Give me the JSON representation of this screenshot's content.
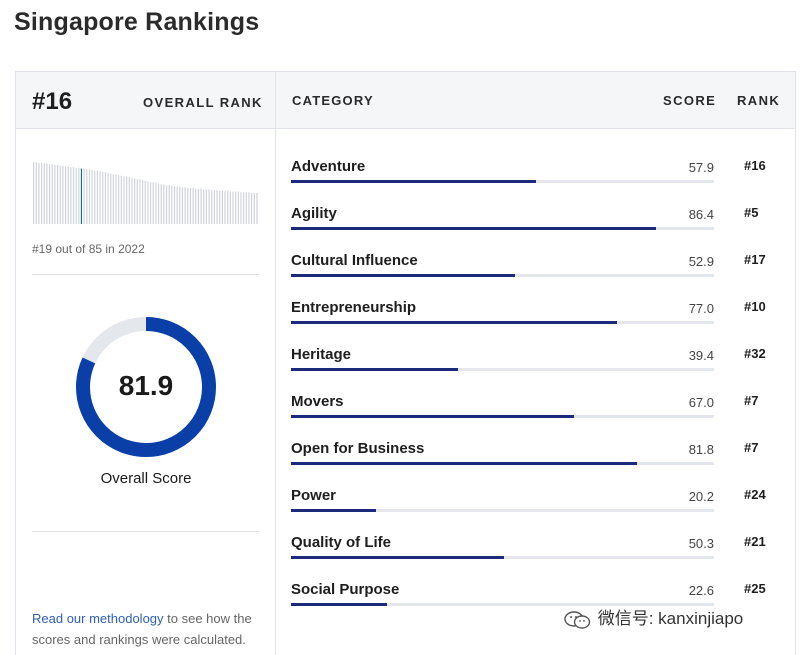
{
  "page": {
    "title": "Singapore Rankings"
  },
  "header": {
    "rank": "#16",
    "overall_rank_label": "OVERALL RANK",
    "category_label": "CATEGORY",
    "score_label": "SCORE",
    "rank_label": "RANK"
  },
  "history": {
    "caption": "#19 out of 85 in 2022",
    "bars": [
      0.86,
      0.86,
      0.85,
      0.85,
      0.84,
      0.84,
      0.83,
      0.83,
      0.82,
      0.82,
      0.81,
      0.81,
      0.8,
      0.8,
      0.79,
      0.79,
      0.78,
      0.78,
      0.77,
      0.77,
      0.76,
      0.76,
      0.75,
      0.74,
      0.74,
      0.73,
      0.72,
      0.72,
      0.71,
      0.7,
      0.69,
      0.69,
      0.68,
      0.67,
      0.66,
      0.66,
      0.65,
      0.64,
      0.63,
      0.62,
      0.62,
      0.61,
      0.6,
      0.59,
      0.58,
      0.58,
      0.57,
      0.56,
      0.55,
      0.55,
      0.54,
      0.54,
      0.53,
      0.53,
      0.52,
      0.52,
      0.51,
      0.51,
      0.5,
      0.5,
      0.5,
      0.49,
      0.49,
      0.49,
      0.48,
      0.48,
      0.48,
      0.47,
      0.47,
      0.47,
      0.46,
      0.46,
      0.46,
      0.46,
      0.45,
      0.45,
      0.45,
      0.45,
      0.44,
      0.44,
      0.44,
      0.44,
      0.43,
      0.43,
      0.43
    ],
    "highlight_index": 18,
    "highlight_color": "#1a6f7a",
    "bar_color": "#cfd4da"
  },
  "overall": {
    "score": "81.9",
    "fraction": 0.819,
    "label": "Overall Score",
    "ring_color": "#0b3fa8",
    "ring_track_color": "#e4e7eb"
  },
  "methodology": {
    "link_text": "Read our methodology",
    "rest_text": " to see how the scores and rankings were calculated."
  },
  "categories": [
    {
      "name": "Adventure",
      "score": "57.9",
      "rank": "#16",
      "fraction": 0.579
    },
    {
      "name": "Agility",
      "score": "86.4",
      "rank": "#5",
      "fraction": 0.864
    },
    {
      "name": "Cultural Influence",
      "score": "52.9",
      "rank": "#17",
      "fraction": 0.529
    },
    {
      "name": "Entrepreneurship",
      "score": "77.0",
      "rank": "#10",
      "fraction": 0.77
    },
    {
      "name": "Heritage",
      "score": "39.4",
      "rank": "#32",
      "fraction": 0.394
    },
    {
      "name": "Movers",
      "score": "67.0",
      "rank": "#7",
      "fraction": 0.67
    },
    {
      "name": "Open for Business",
      "score": "81.8",
      "rank": "#7",
      "fraction": 0.818
    },
    {
      "name": "Power",
      "score": "20.2",
      "rank": "#24",
      "fraction": 0.202
    },
    {
      "name": "Quality of Life",
      "score": "50.3",
      "rank": "#21",
      "fraction": 0.503
    },
    {
      "name": "Social Purpose",
      "score": "22.6",
      "rank": "#25",
      "fraction": 0.226
    }
  ],
  "watermark": {
    "text": "微信号: kanxinjiapo",
    "icon": "wechat-icon"
  },
  "colors": {
    "bar_fill": "#1b2a7a",
    "bar_track": "#e3e6ea",
    "link": "#2d5fb4"
  }
}
